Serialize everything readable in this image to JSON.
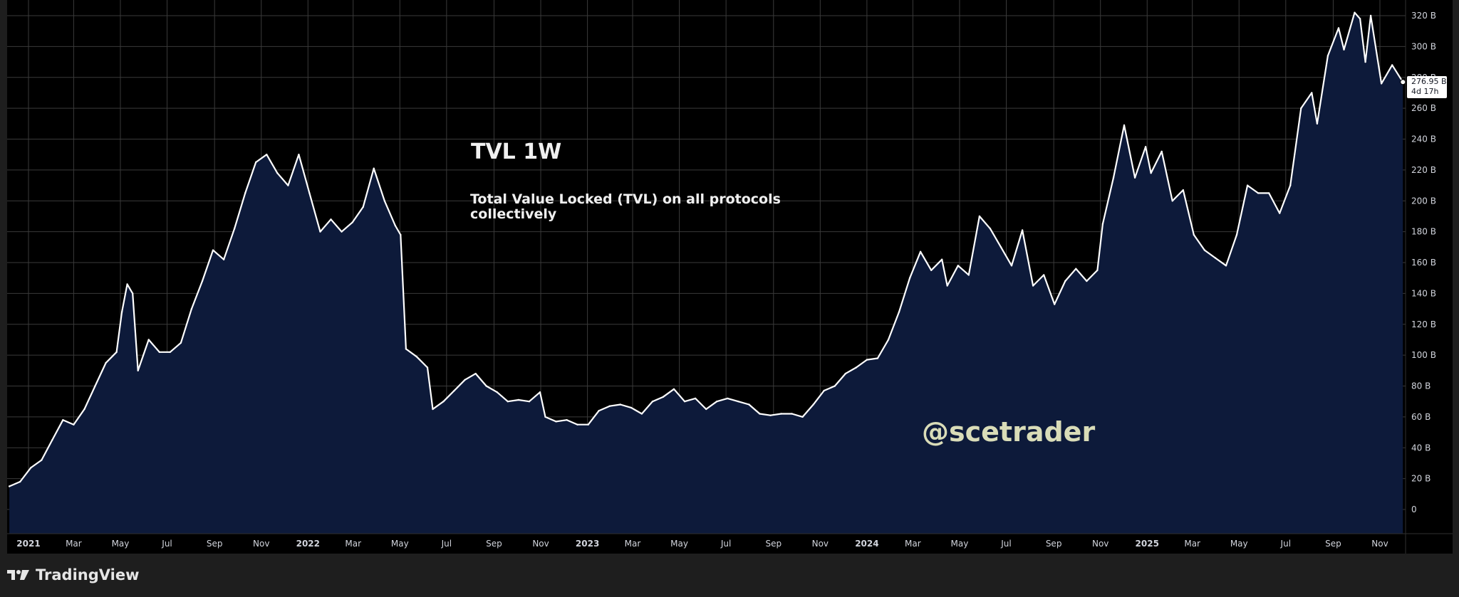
{
  "app": {
    "brand": "TradingView",
    "logo_icon": "tradingview-logo-icon"
  },
  "colors": {
    "plot_background": "#000000",
    "frame_background": "#1e1e1e",
    "grid": "#3a3a3a",
    "line": "#ffffff",
    "area_fill": "#0d1a3a",
    "axis_text": "#d1d4dc",
    "watermark": "#d9dcb8"
  },
  "annotations": {
    "watermark": "@scetrader",
    "price_tag_value": "276.95 B",
    "price_tag_countdown": "4d 17h"
  },
  "chart_data": {
    "type": "area",
    "title": "TVL 1W",
    "subtitle": "Total Value Locked (TVL) on all protocols collectively",
    "xlabel": "",
    "ylabel": "",
    "ylim": [
      -15,
      325
    ],
    "y_unit": "B",
    "yticks": [
      "0",
      "20 B",
      "40 B",
      "60 B",
      "80 B",
      "100 B",
      "120 B",
      "140 B",
      "160 B",
      "180 B",
      "200 B",
      "220 B",
      "240 B",
      "260 B",
      "280 B",
      "300 B",
      "320 B"
    ],
    "xticks": [
      {
        "label": "2021",
        "date": "2021-01-01",
        "year": true
      },
      {
        "label": "Mar",
        "date": "2021-03-01"
      },
      {
        "label": "May",
        "date": "2021-05-01"
      },
      {
        "label": "Jul",
        "date": "2021-07-01"
      },
      {
        "label": "Sep",
        "date": "2021-09-01"
      },
      {
        "label": "Nov",
        "date": "2021-11-01"
      },
      {
        "label": "2022",
        "date": "2022-01-01",
        "year": true
      },
      {
        "label": "Mar",
        "date": "2022-03-01"
      },
      {
        "label": "May",
        "date": "2022-05-01"
      },
      {
        "label": "Jul",
        "date": "2022-07-01"
      },
      {
        "label": "Sep",
        "date": "2022-09-01"
      },
      {
        "label": "Nov",
        "date": "2022-11-01"
      },
      {
        "label": "2023",
        "date": "2023-01-01",
        "year": true
      },
      {
        "label": "Mar",
        "date": "2023-03-01"
      },
      {
        "label": "May",
        "date": "2023-05-01"
      },
      {
        "label": "Jul",
        "date": "2023-07-01"
      },
      {
        "label": "Sep",
        "date": "2023-09-01"
      },
      {
        "label": "Nov",
        "date": "2023-11-01"
      },
      {
        "label": "2024",
        "date": "2024-01-01",
        "year": true
      },
      {
        "label": "Mar",
        "date": "2024-03-01"
      },
      {
        "label": "May",
        "date": "2024-05-01"
      },
      {
        "label": "Jul",
        "date": "2024-07-01"
      },
      {
        "label": "Sep",
        "date": "2024-09-01"
      },
      {
        "label": "Nov",
        "date": "2024-11-01"
      },
      {
        "label": "2025",
        "date": "2025-01-01",
        "year": true
      },
      {
        "label": "Mar",
        "date": "2025-03-01"
      },
      {
        "label": "May",
        "date": "2025-05-01"
      },
      {
        "label": "Jul",
        "date": "2025-07-01"
      },
      {
        "label": "Sep",
        "date": "2025-09-01"
      },
      {
        "label": "Nov",
        "date": "2025-11-01"
      }
    ],
    "grid": true,
    "series": [
      {
        "values": [
          [
            "2020-12-07",
            15
          ],
          [
            "2020-12-21",
            18
          ],
          [
            "2021-01-04",
            27
          ],
          [
            "2021-01-18",
            32
          ],
          [
            "2021-02-01",
            45
          ],
          [
            "2021-02-15",
            58
          ],
          [
            "2021-03-01",
            55
          ],
          [
            "2021-03-15",
            65
          ],
          [
            "2021-03-29",
            80
          ],
          [
            "2021-04-12",
            95
          ],
          [
            "2021-04-26",
            102
          ],
          [
            "2021-05-03",
            128
          ],
          [
            "2021-05-10",
            146
          ],
          [
            "2021-05-17",
            140
          ],
          [
            "2021-05-24",
            90
          ],
          [
            "2021-06-07",
            110
          ],
          [
            "2021-06-21",
            102
          ],
          [
            "2021-07-05",
            102
          ],
          [
            "2021-07-19",
            108
          ],
          [
            "2021-08-02",
            130
          ],
          [
            "2021-08-16",
            148
          ],
          [
            "2021-08-30",
            168
          ],
          [
            "2021-09-13",
            162
          ],
          [
            "2021-09-27",
            182
          ],
          [
            "2021-10-11",
            205
          ],
          [
            "2021-10-25",
            225
          ],
          [
            "2021-11-08",
            230
          ],
          [
            "2021-11-22",
            218
          ],
          [
            "2021-12-06",
            210
          ],
          [
            "2021-12-20",
            230
          ],
          [
            "2022-01-03",
            205
          ],
          [
            "2022-01-17",
            180
          ],
          [
            "2022-01-31",
            188
          ],
          [
            "2022-02-14",
            180
          ],
          [
            "2022-02-28",
            186
          ],
          [
            "2022-03-14",
            196
          ],
          [
            "2022-03-28",
            221
          ],
          [
            "2022-04-11",
            200
          ],
          [
            "2022-04-25",
            184
          ],
          [
            "2022-05-02",
            178
          ],
          [
            "2022-05-09",
            104
          ],
          [
            "2022-05-23",
            99
          ],
          [
            "2022-06-06",
            92
          ],
          [
            "2022-06-13",
            65
          ],
          [
            "2022-06-27",
            70
          ],
          [
            "2022-07-11",
            77
          ],
          [
            "2022-07-25",
            84
          ],
          [
            "2022-08-08",
            88
          ],
          [
            "2022-08-22",
            80
          ],
          [
            "2022-09-05",
            76
          ],
          [
            "2022-09-19",
            70
          ],
          [
            "2022-10-03",
            71
          ],
          [
            "2022-10-17",
            70
          ],
          [
            "2022-10-31",
            76
          ],
          [
            "2022-11-07",
            60
          ],
          [
            "2022-11-21",
            57
          ],
          [
            "2022-12-05",
            58
          ],
          [
            "2022-12-19",
            55
          ],
          [
            "2023-01-02",
            55
          ],
          [
            "2023-01-16",
            64
          ],
          [
            "2023-01-30",
            67
          ],
          [
            "2023-02-13",
            68
          ],
          [
            "2023-02-27",
            66
          ],
          [
            "2023-03-13",
            62
          ],
          [
            "2023-03-27",
            70
          ],
          [
            "2023-04-10",
            73
          ],
          [
            "2023-04-24",
            78
          ],
          [
            "2023-05-08",
            70
          ],
          [
            "2023-05-22",
            72
          ],
          [
            "2023-06-05",
            65
          ],
          [
            "2023-06-19",
            70
          ],
          [
            "2023-07-03",
            72
          ],
          [
            "2023-07-17",
            70
          ],
          [
            "2023-07-31",
            68
          ],
          [
            "2023-08-14",
            62
          ],
          [
            "2023-08-28",
            61
          ],
          [
            "2023-09-11",
            62
          ],
          [
            "2023-09-25",
            62
          ],
          [
            "2023-10-09",
            60
          ],
          [
            "2023-10-23",
            68
          ],
          [
            "2023-11-06",
            77
          ],
          [
            "2023-11-20",
            80
          ],
          [
            "2023-12-04",
            88
          ],
          [
            "2023-12-18",
            92
          ],
          [
            "2024-01-01",
            97
          ],
          [
            "2024-01-15",
            98
          ],
          [
            "2024-01-29",
            110
          ],
          [
            "2024-02-12",
            128
          ],
          [
            "2024-02-26",
            150
          ],
          [
            "2024-03-11",
            167
          ],
          [
            "2024-03-25",
            155
          ],
          [
            "2024-04-08",
            162
          ],
          [
            "2024-04-15",
            145
          ],
          [
            "2024-04-29",
            158
          ],
          [
            "2024-05-13",
            152
          ],
          [
            "2024-05-27",
            190
          ],
          [
            "2024-06-10",
            182
          ],
          [
            "2024-06-24",
            170
          ],
          [
            "2024-07-08",
            158
          ],
          [
            "2024-07-22",
            181
          ],
          [
            "2024-08-05",
            145
          ],
          [
            "2024-08-19",
            152
          ],
          [
            "2024-09-02",
            133
          ],
          [
            "2024-09-16",
            148
          ],
          [
            "2024-09-30",
            156
          ],
          [
            "2024-10-14",
            148
          ],
          [
            "2024-10-28",
            155
          ],
          [
            "2024-11-04",
            185
          ],
          [
            "2024-11-18",
            215
          ],
          [
            "2024-12-02",
            249
          ],
          [
            "2024-12-16",
            215
          ],
          [
            "2024-12-30",
            235
          ],
          [
            "2025-01-06",
            218
          ],
          [
            "2025-01-20",
            232
          ],
          [
            "2025-02-03",
            200
          ],
          [
            "2025-02-17",
            207
          ],
          [
            "2025-03-03",
            178
          ],
          [
            "2025-03-17",
            168
          ],
          [
            "2025-03-31",
            163
          ],
          [
            "2025-04-14",
            158
          ],
          [
            "2025-04-28",
            178
          ],
          [
            "2025-05-12",
            210
          ],
          [
            "2025-05-26",
            205
          ],
          [
            "2025-06-09",
            205
          ],
          [
            "2025-06-23",
            192
          ],
          [
            "2025-07-07",
            210
          ],
          [
            "2025-07-21",
            260
          ],
          [
            "2025-08-04",
            270
          ],
          [
            "2025-08-11",
            250
          ],
          [
            "2025-08-25",
            294
          ],
          [
            "2025-09-08",
            312
          ],
          [
            "2025-09-15",
            298
          ],
          [
            "2025-09-29",
            322
          ],
          [
            "2025-10-06",
            318
          ],
          [
            "2025-10-13",
            290
          ],
          [
            "2025-10-20",
            320
          ],
          [
            "2025-11-03",
            276
          ],
          [
            "2025-11-17",
            288
          ],
          [
            "2025-12-01",
            277
          ]
        ]
      }
    ],
    "last_value": 276.95
  }
}
